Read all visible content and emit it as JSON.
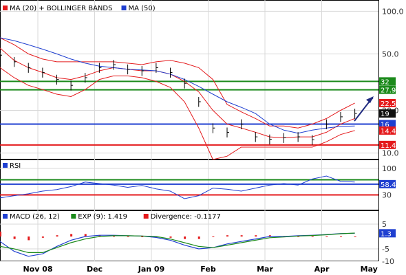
{
  "chart_data": [
    {
      "type": "line",
      "panel": "price",
      "yscale": "log",
      "ylim": [
        9,
        120
      ],
      "yticks": [
        {
          "value": 100,
          "label": "100.0"
        },
        {
          "value": 50,
          "label": "50.0"
        },
        {
          "value": 20,
          "label": "20.0"
        },
        {
          "value": 10,
          "label": "10.0"
        }
      ],
      "legend": [
        {
          "label": "MA (20) + BOLLINGER BANDS",
          "color": "#e41a1c"
        },
        {
          "label": "MA (50)",
          "color": "#1f3fd0"
        }
      ],
      "x": [
        0,
        6,
        12,
        18,
        24,
        30,
        36,
        42,
        48,
        54,
        60,
        66,
        72,
        78,
        84,
        90,
        96,
        102,
        108,
        114,
        120,
        126,
        132,
        138,
        144,
        150
      ],
      "close": [
        49,
        44,
        40,
        37,
        33,
        30,
        34,
        40,
        42,
        39,
        38,
        40,
        37,
        31,
        23,
        15,
        14,
        16,
        13,
        12.5,
        12.8,
        13,
        12.4,
        16,
        18,
        19
      ],
      "series": [
        {
          "name": "MA (20)",
          "color": "#e41a1c",
          "values": [
            55,
            45,
            40,
            37,
            34,
            33,
            35,
            38,
            40,
            39,
            38,
            38,
            36,
            32,
            27,
            20,
            16,
            15,
            14,
            13,
            12.8,
            13,
            13,
            14,
            16,
            17.5
          ]
        },
        {
          "name": "MA (50)",
          "color": "#1f3fd0",
          "values": [
            65,
            62,
            58,
            54,
            50,
            46,
            43,
            41,
            40,
            39,
            38.5,
            38,
            36,
            33,
            29.5,
            26,
            23,
            21,
            19,
            16,
            14.5,
            13.8,
            14.5,
            15,
            15.4,
            15.5
          ]
        }
      ],
      "bands": {
        "upper": [
          65,
          58,
          50,
          46,
          44,
          44,
          44,
          44,
          44,
          43,
          42,
          44,
          45,
          43,
          40,
          33,
          22,
          19.5,
          17.5,
          15.5,
          15.5,
          15,
          16,
          17.5,
          20,
          22.5
        ],
        "lower": [
          40,
          34,
          30,
          28,
          26,
          25,
          28,
          33,
          35,
          35,
          34,
          32,
          29,
          23,
          15,
          9,
          9.5,
          11,
          11,
          11,
          11,
          11,
          11,
          12,
          13.5,
          14.4
        ]
      },
      "hlines": [
        {
          "value": 32,
          "color": "#1b8a1b",
          "label": "32"
        },
        {
          "value": 27.9,
          "color": "#1b8a1b",
          "label": "27.9"
        },
        {
          "value": 16,
          "color": "#1f3fd0",
          "label": "16"
        },
        {
          "value": 11.4,
          "color": "#e41a1c",
          "label": "11.4"
        }
      ],
      "value_labels": [
        {
          "value": 22.5,
          "label": "22.5",
          "bg": "#e41a1c"
        },
        {
          "value": 19,
          "label": "19",
          "bg": "#111111"
        },
        {
          "value": 14.4,
          "label": "14.4",
          "bg": "#e41a1c"
        }
      ]
    },
    {
      "type": "line",
      "panel": "rsi",
      "ylim": [
        0,
        100
      ],
      "yticks": [
        {
          "value": 100,
          "label": "100"
        },
        {
          "value": 30,
          "label": "30"
        }
      ],
      "legend": [
        {
          "label": "RSI",
          "color": "#1f3fd0"
        }
      ],
      "x": [
        0,
        6,
        12,
        18,
        24,
        30,
        36,
        42,
        48,
        54,
        60,
        66,
        72,
        78,
        84,
        90,
        96,
        102,
        108,
        114,
        120,
        126,
        132,
        138,
        144,
        150
      ],
      "series": [
        {
          "name": "RSI",
          "color": "#1f3fd0",
          "values": [
            22,
            28,
            33,
            40,
            44,
            52,
            64,
            60,
            56,
            50,
            55,
            46,
            40,
            20,
            28,
            48,
            45,
            40,
            48,
            56,
            60,
            56,
            72,
            80,
            66,
            64
          ]
        }
      ],
      "hlines": [
        {
          "value": 70,
          "color": "#1b8a1b",
          "label": "70"
        },
        {
          "value": 58.46,
          "color": "#1f3fd0",
          "label": "58.46"
        },
        {
          "value": 30,
          "color": "#e41a1c",
          "label": "30"
        }
      ]
    },
    {
      "type": "line",
      "panel": "macd",
      "ylim": [
        -10,
        10
      ],
      "yticks": [
        {
          "value": 5,
          "label": "5"
        },
        {
          "value": -5,
          "label": "-5"
        },
        {
          "value": -10,
          "label": "-10"
        }
      ],
      "legend": [
        {
          "label": "MACD (26, 12)",
          "color": "#1f3fd0"
        },
        {
          "label": "EXP (9): 1.419",
          "color": "#1b8a1b"
        },
        {
          "label": "Divergence: -0.1177",
          "color": "#e41a1c"
        }
      ],
      "x": [
        0,
        6,
        12,
        18,
        24,
        30,
        36,
        42,
        48,
        54,
        60,
        66,
        72,
        78,
        84,
        90,
        96,
        102,
        108,
        114,
        120,
        126,
        132,
        138,
        144,
        150
      ],
      "series": [
        {
          "name": "MACD (26, 12)",
          "color": "#1f3fd0",
          "values": [
            -2,
            -6,
            -8,
            -7,
            -4,
            -1.5,
            0,
            0.5,
            0.5,
            0.3,
            0.2,
            -0.4,
            -1.5,
            -3.5,
            -5,
            -4.5,
            -3,
            -2,
            -1,
            0,
            0,
            0.3,
            0.5,
            0.8,
            1.2,
            1.3
          ]
        },
        {
          "name": "EXP (9): 1.419",
          "color": "#1b8a1b",
          "values": [
            -4,
            -5,
            -6.5,
            -6.5,
            -4.5,
            -2.5,
            -1,
            0,
            0.3,
            0.3,
            0.2,
            0,
            -1,
            -2.5,
            -4,
            -4.5,
            -3.5,
            -2.5,
            -1.5,
            -0.5,
            -0.2,
            0.2,
            0.4,
            0.7,
            1.1,
            1.4
          ]
        }
      ],
      "value_labels": [
        {
          "value": 1.3,
          "label": "1.3",
          "bg": "#1f3fd0"
        }
      ]
    }
  ],
  "x_axis": {
    "tick_x": [
      16,
      40,
      64,
      88,
      112,
      136
    ],
    "labels": [
      "Nov 08",
      "Dec",
      "Jan 09",
      "Feb",
      "Mar",
      "Apr",
      "May"
    ],
    "label_x": [
      16,
      40,
      64,
      88,
      112,
      136,
      156
    ]
  }
}
